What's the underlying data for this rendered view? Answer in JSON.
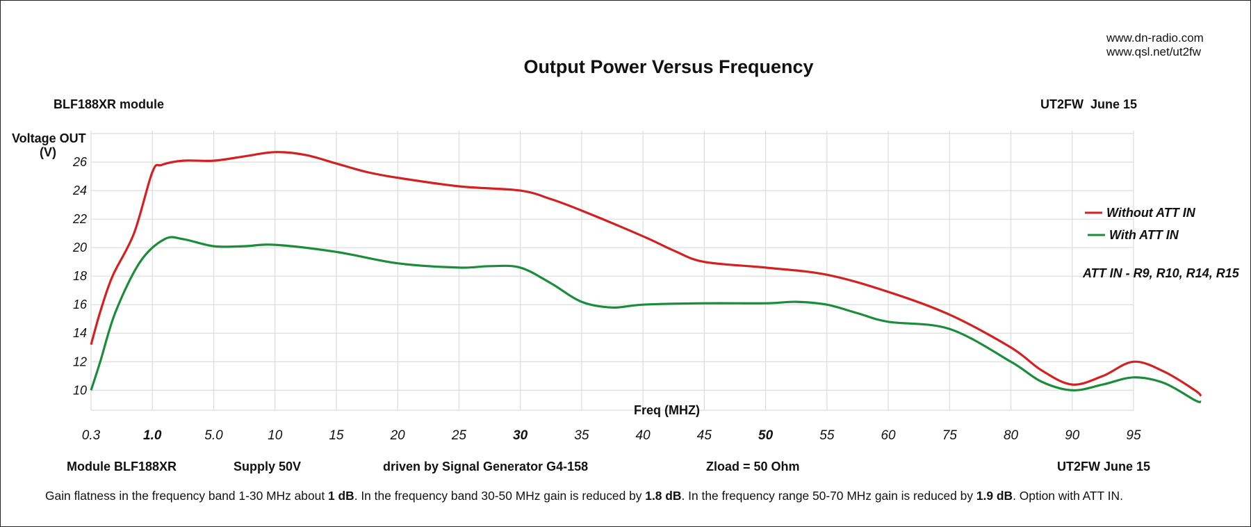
{
  "header": {
    "url1": "www.dn-radio.com",
    "url2": "www.qsl.net/ut2fw",
    "left_label": "BLF188XR module",
    "right_label": "UT2FW  June 15"
  },
  "footer": {
    "module": "Module BLF188XR",
    "supply": "Supply 50V",
    "driven": "driven by Signal Generator G4-158",
    "zload": "Zload = 50 Ohm",
    "sign": "UT2FW June 15",
    "note_parts": [
      {
        "text": "Gain flatness in the frequency band 1-30 MHz about ",
        "bold": false
      },
      {
        "text": "1 dB",
        "bold": true
      },
      {
        "text": ". In the frequency band 30-50 MHz gain is reduced by ",
        "bold": false
      },
      {
        "text": "1.8 dB",
        "bold": true
      },
      {
        "text": ". In the frequency range 50-70 MHz gain is reduced by ",
        "bold": false
      },
      {
        "text": "1.9 dB",
        "bold": true
      },
      {
        "text": ". Option with ATT IN.",
        "bold": false
      }
    ]
  },
  "annotation": "ATT IN - R9, R10, R14, R15",
  "colors": {
    "without_att": "#d42020",
    "with_att": "#1a8c3a",
    "highlight_red": "#d42020",
    "highlight_green": "#1a8c3a"
  },
  "chart_data": {
    "type": "line",
    "title": "Output Power Versus Frequency",
    "xlabel": "Freq (MHZ)",
    "ylabel_line1": "Voltage OUT",
    "ylabel_line2": "(V)",
    "categories": [
      "0.3",
      "1.0",
      "5.0",
      "10",
      "15",
      "20",
      "25",
      "30",
      "35",
      "40",
      "45",
      "50",
      "55",
      "60",
      "75",
      "80",
      "90",
      "95"
    ],
    "highlighted_categories": [
      {
        "label": "1.0",
        "color": "#d42020"
      },
      {
        "label": "30",
        "color": "#d42020"
      },
      {
        "label": "50",
        "color": "#1a8c3a"
      }
    ],
    "yticks": [
      10,
      12,
      14,
      16,
      18,
      20,
      22,
      24,
      26
    ],
    "ylim": [
      8.6,
      28.2
    ],
    "grid": true,
    "legend_position": "right",
    "series": [
      {
        "name": "Without ATT IN",
        "color": "#d42020",
        "points": [
          [
            0,
            13.2
          ],
          [
            0.15,
            15.5
          ],
          [
            0.35,
            18.0
          ],
          [
            0.7,
            21.0
          ],
          [
            1.0,
            25.3
          ],
          [
            1.15,
            25.8
          ],
          [
            1.5,
            26.1
          ],
          [
            2.0,
            26.1
          ],
          [
            2.5,
            26.4
          ],
          [
            3.0,
            26.7
          ],
          [
            3.5,
            26.5
          ],
          [
            4.0,
            25.9
          ],
          [
            4.5,
            25.3
          ],
          [
            5.0,
            24.9
          ],
          [
            6.0,
            24.3
          ],
          [
            7.0,
            24.0
          ],
          [
            7.5,
            23.4
          ],
          [
            8.0,
            22.6
          ],
          [
            9.0,
            20.8
          ],
          [
            9.5,
            19.8
          ],
          [
            10.0,
            19.0
          ],
          [
            11.0,
            18.6
          ],
          [
            12.0,
            18.1
          ],
          [
            13.0,
            16.9
          ],
          [
            14.0,
            15.3
          ],
          [
            15.0,
            13.0
          ],
          [
            15.5,
            11.4
          ],
          [
            16.0,
            10.4
          ],
          [
            16.5,
            11.0
          ],
          [
            17.0,
            12.0
          ],
          [
            17.5,
            11.3
          ],
          [
            18.0,
            10.0
          ],
          [
            18.1,
            9.6
          ]
        ]
      },
      {
        "name": "With ATT IN",
        "color": "#1a8c3a",
        "points": [
          [
            0,
            10.0
          ],
          [
            0.15,
            12.0
          ],
          [
            0.4,
            15.5
          ],
          [
            0.8,
            19.0
          ],
          [
            1.2,
            20.6
          ],
          [
            1.5,
            20.6
          ],
          [
            2.0,
            20.1
          ],
          [
            2.5,
            20.1
          ],
          [
            3.0,
            20.2
          ],
          [
            4.0,
            19.7
          ],
          [
            5.0,
            18.9
          ],
          [
            6.0,
            18.6
          ],
          [
            6.5,
            18.7
          ],
          [
            7.0,
            18.6
          ],
          [
            7.5,
            17.5
          ],
          [
            8.0,
            16.2
          ],
          [
            8.5,
            15.8
          ],
          [
            9.0,
            16.0
          ],
          [
            10.0,
            16.1
          ],
          [
            11.0,
            16.1
          ],
          [
            11.5,
            16.2
          ],
          [
            12.0,
            16.0
          ],
          [
            12.5,
            15.4
          ],
          [
            13.0,
            14.8
          ],
          [
            14.0,
            14.3
          ],
          [
            15.0,
            12.0
          ],
          [
            15.5,
            10.6
          ],
          [
            16.0,
            10.0
          ],
          [
            16.5,
            10.4
          ],
          [
            17.0,
            10.9
          ],
          [
            17.5,
            10.5
          ],
          [
            18.0,
            9.3
          ],
          [
            18.1,
            9.2
          ]
        ]
      }
    ]
  }
}
